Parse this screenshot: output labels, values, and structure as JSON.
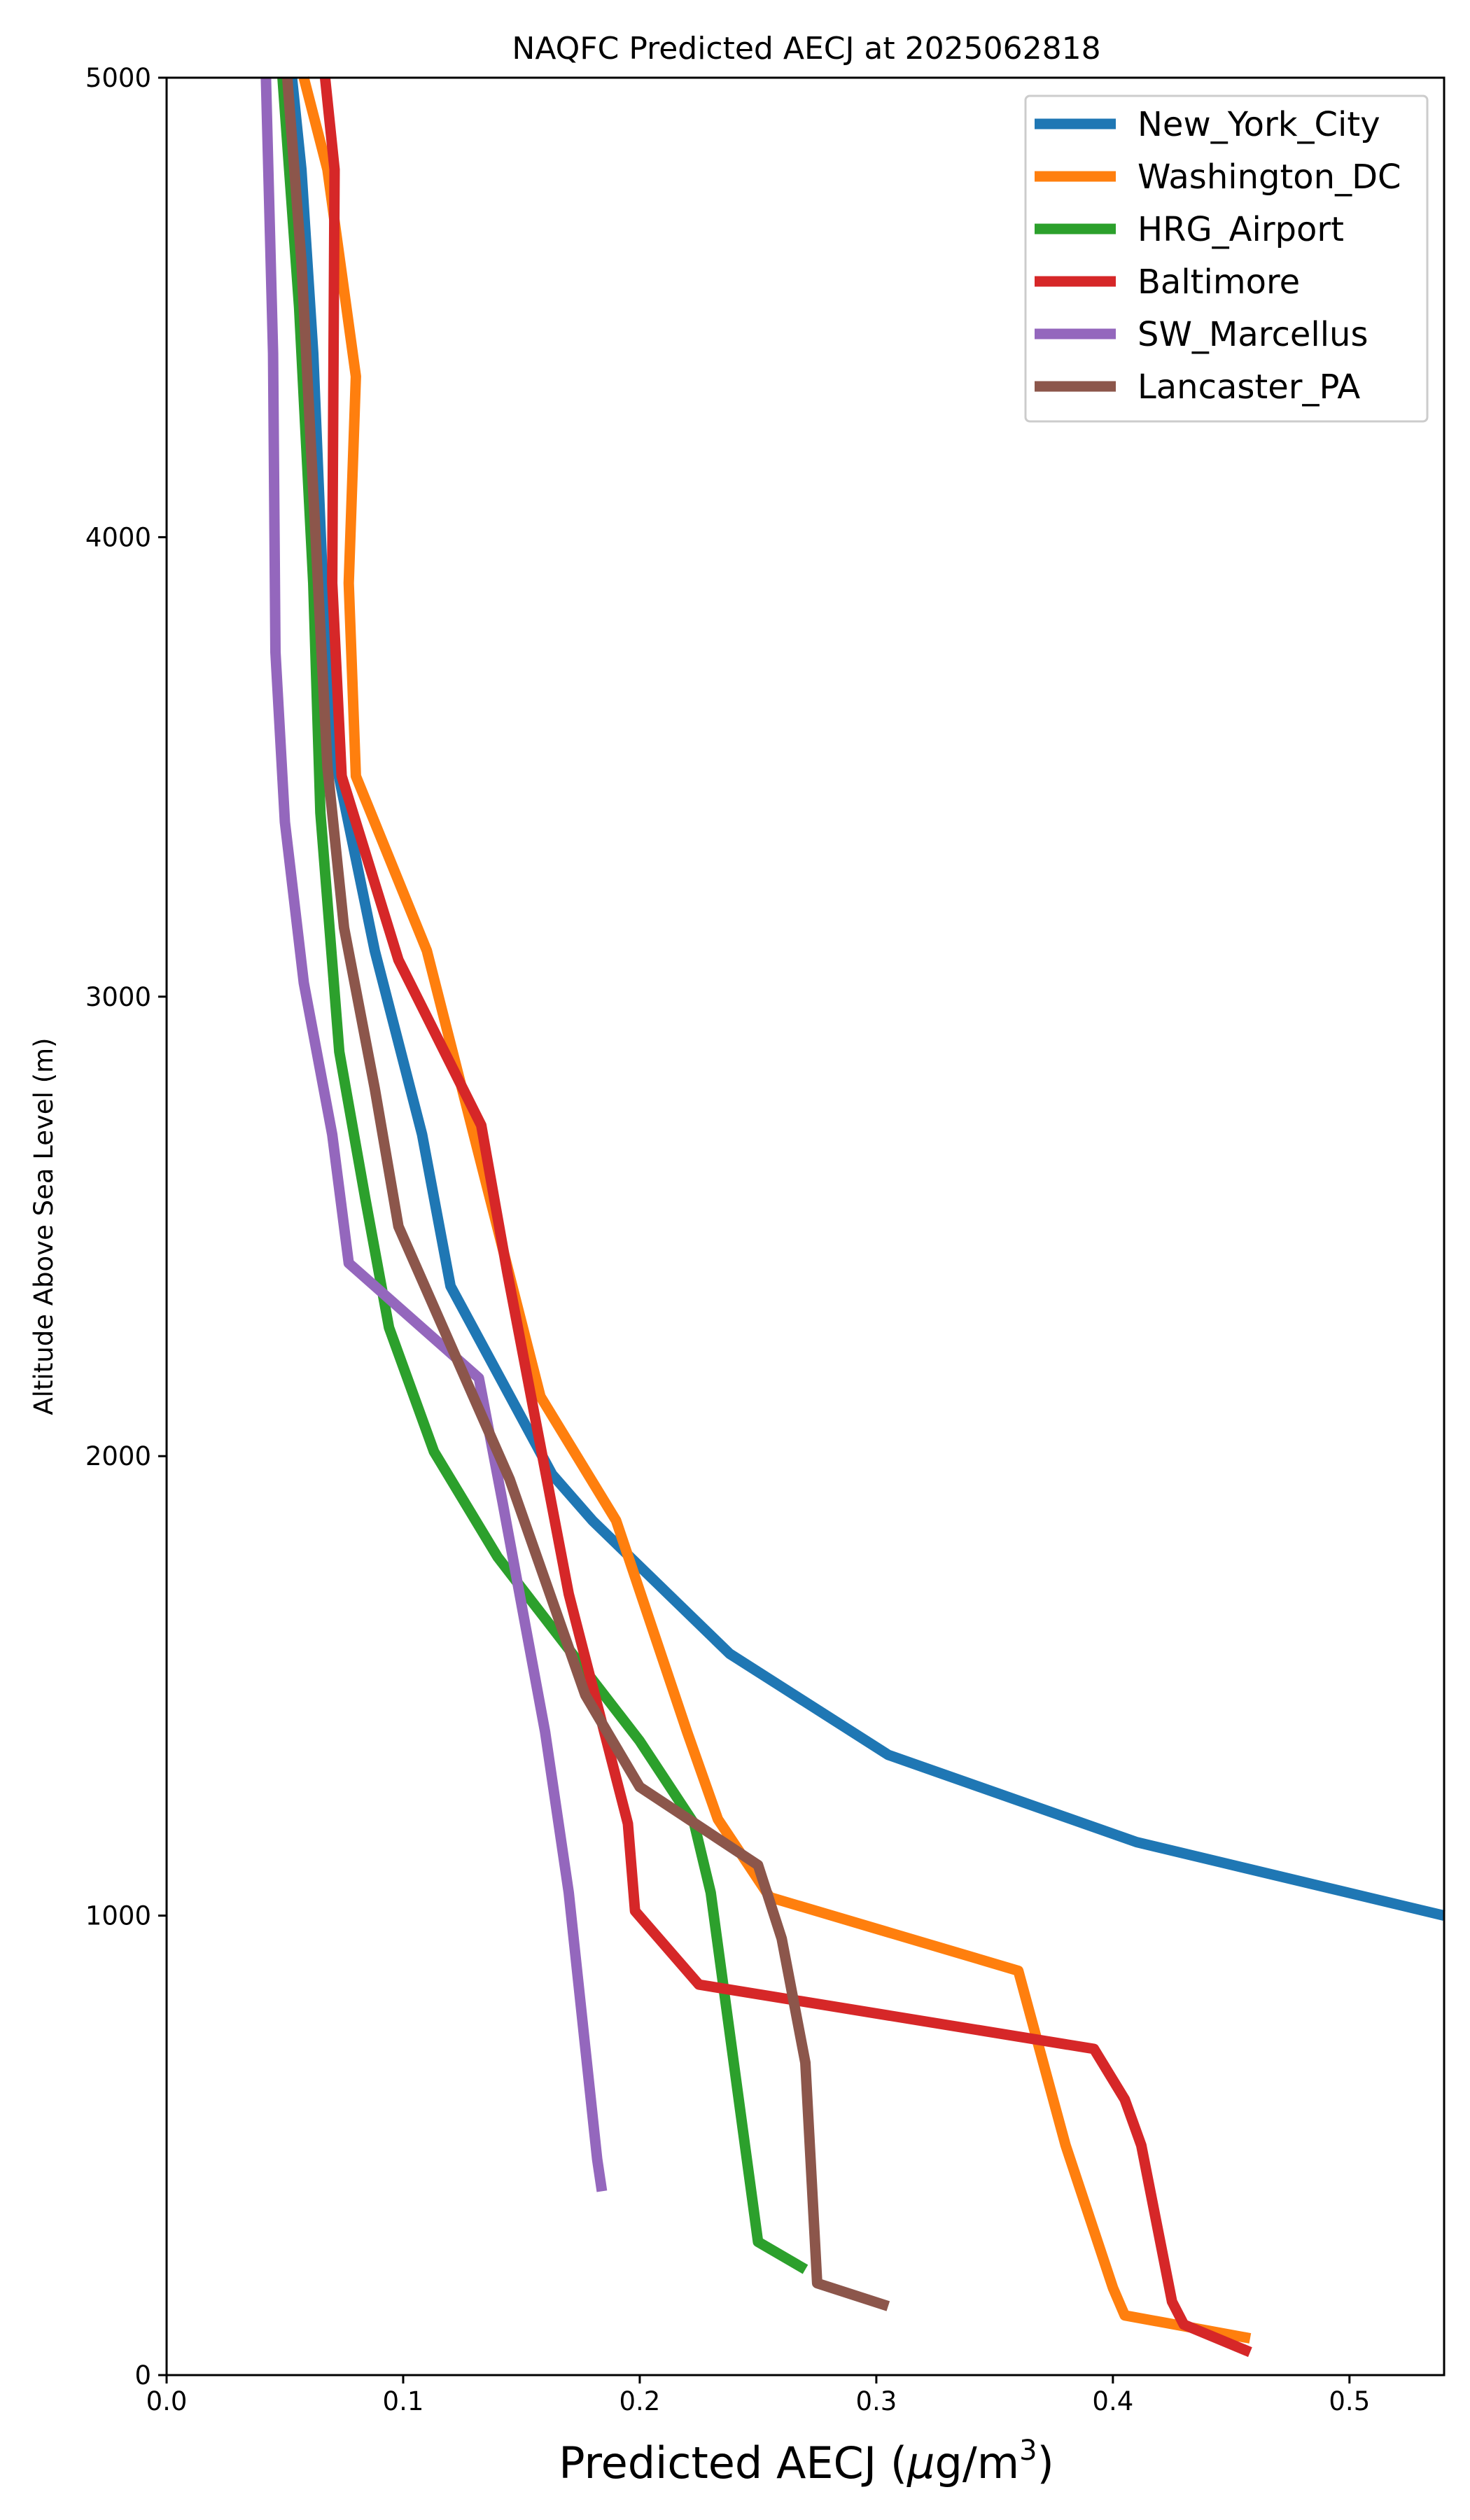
{
  "chart_data": {
    "type": "line",
    "title": "NAQFC Predicted AECJ at 2025062818",
    "xlabel_prefix": "Predicted AECJ (",
    "xlabel_mu": "μ",
    "xlabel_unit": "g/m",
    "xlabel_sup": "3",
    "xlabel_suffix": ")",
    "ylabel": "Altitude Above Sea Level (m)",
    "xlim": [
      0,
      0.54
    ],
    "ylim": [
      0,
      5000
    ],
    "xticks": [
      0,
      0.1,
      0.2,
      0.3,
      0.4,
      0.5
    ],
    "xtick_labels": [
      "0.0",
      "0.1",
      "0.2",
      "0.3",
      "0.4",
      "0.5"
    ],
    "yticks": [
      0,
      1000,
      2000,
      3000,
      4000,
      5000
    ],
    "ytick_labels": [
      "0",
      "1000",
      "2000",
      "3000",
      "4000",
      "5000"
    ],
    "grid": false,
    "legend_position": "top-right",
    "series": [
      {
        "name": "New_York_City",
        "color": "#1f77b4",
        "points": [
          [
            0.54,
            1000
          ],
          [
            0.41,
            1160
          ],
          [
            0.305,
            1350
          ],
          [
            0.238,
            1570
          ],
          [
            0.18,
            1860
          ],
          [
            0.163,
            1960
          ],
          [
            0.12,
            2370
          ],
          [
            0.108,
            2700
          ],
          [
            0.088,
            3100
          ],
          [
            0.072,
            3500
          ],
          [
            0.066,
            3900
          ],
          [
            0.062,
            4400
          ],
          [
            0.057,
            4800
          ],
          [
            0.053,
            5000
          ]
        ]
      },
      {
        "name": "Washington_DC",
        "color": "#ff7f0e",
        "points": [
          [
            0.458,
            80
          ],
          [
            0.405,
            130
          ],
          [
            0.4,
            190
          ],
          [
            0.38,
            500
          ],
          [
            0.36,
            880
          ],
          [
            0.255,
            1040
          ],
          [
            0.233,
            1210
          ],
          [
            0.22,
            1400
          ],
          [
            0.19,
            1860
          ],
          [
            0.158,
            2130
          ],
          [
            0.11,
            3100
          ],
          [
            0.08,
            3480
          ],
          [
            0.077,
            3900
          ],
          [
            0.08,
            4350
          ],
          [
            0.068,
            4800
          ],
          [
            0.058,
            5000
          ]
        ]
      },
      {
        "name": "HRG_Airport",
        "color": "#2ca02c",
        "points": [
          [
            0.27,
            230
          ],
          [
            0.25,
            290
          ],
          [
            0.23,
            1050
          ],
          [
            0.223,
            1200
          ],
          [
            0.2,
            1380
          ],
          [
            0.14,
            1780
          ],
          [
            0.113,
            2010
          ],
          [
            0.094,
            2280
          ],
          [
            0.084,
            2560
          ],
          [
            0.073,
            2880
          ],
          [
            0.065,
            3400
          ],
          [
            0.062,
            3900
          ],
          [
            0.056,
            4500
          ],
          [
            0.049,
            5000
          ]
        ]
      },
      {
        "name": "Baltimore",
        "color": "#d62728",
        "points": [
          [
            0.458,
            50
          ],
          [
            0.43,
            110
          ],
          [
            0.425,
            160
          ],
          [
            0.412,
            500
          ],
          [
            0.405,
            600
          ],
          [
            0.392,
            710
          ],
          [
            0.225,
            850
          ],
          [
            0.198,
            1010
          ],
          [
            0.195,
            1200
          ],
          [
            0.17,
            1700
          ],
          [
            0.144,
            2400
          ],
          [
            0.133,
            2720
          ],
          [
            0.098,
            3080
          ],
          [
            0.074,
            3480
          ],
          [
            0.07,
            3900
          ],
          [
            0.071,
            4800
          ],
          [
            0.067,
            5000
          ]
        ]
      },
      {
        "name": "SW_Marcellus",
        "color": "#9467bd",
        "points": [
          [
            0.184,
            400
          ],
          [
            0.182,
            470
          ],
          [
            0.17,
            1050
          ],
          [
            0.16,
            1400
          ],
          [
            0.142,
            1900
          ],
          [
            0.132,
            2170
          ],
          [
            0.077,
            2420
          ],
          [
            0.07,
            2700
          ],
          [
            0.058,
            3030
          ],
          [
            0.05,
            3380
          ],
          [
            0.046,
            3750
          ],
          [
            0.045,
            4400
          ],
          [
            0.042,
            5000
          ]
        ]
      },
      {
        "name": "Lancaster_PA",
        "color": "#8c564b",
        "points": [
          [
            0.305,
            150
          ],
          [
            0.275,
            200
          ],
          [
            0.27,
            680
          ],
          [
            0.26,
            950
          ],
          [
            0.25,
            1110
          ],
          [
            0.2,
            1280
          ],
          [
            0.177,
            1480
          ],
          [
            0.145,
            1950
          ],
          [
            0.098,
            2500
          ],
          [
            0.088,
            2800
          ],
          [
            0.075,
            3150
          ],
          [
            0.068,
            3500
          ],
          [
            0.063,
            4000
          ],
          [
            0.057,
            4600
          ],
          [
            0.051,
            5000
          ]
        ]
      }
    ]
  }
}
